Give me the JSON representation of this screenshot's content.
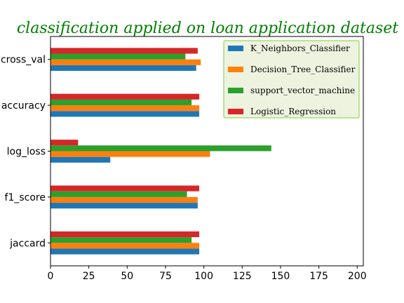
{
  "chart_data": {
    "type": "bar",
    "orientation": "horizontal",
    "title": "classification applied on loan application dataset",
    "title_color": "#008000",
    "categories": [
      "jaccard",
      "f1_score",
      "log_loss",
      "accuracy",
      "cross_val"
    ],
    "series": [
      {
        "name": "K_Neighbors_Classifier",
        "color": "#1f77b4",
        "values": [
          97,
          96,
          39,
          97,
          95
        ]
      },
      {
        "name": "Decision_Tree_Classifier",
        "color": "#ff7f0e",
        "values": [
          97,
          96,
          104,
          97,
          98
        ]
      },
      {
        "name": "support_vector_machine",
        "color": "#2ca02c",
        "values": [
          92,
          89,
          144,
          92,
          88
        ]
      },
      {
        "name": "Logistic_Regression",
        "color": "#d62728",
        "values": [
          97,
          97,
          18,
          97,
          96
        ]
      }
    ],
    "xlim": [
      0,
      204
    ],
    "xticks": [
      "0",
      "25",
      "50",
      "75",
      "100",
      "125",
      "150",
      "175",
      "200"
    ],
    "grid": false,
    "legend_position": "top-right",
    "legend_background": "#eef3e0",
    "legend_border": "#7fd13b"
  }
}
